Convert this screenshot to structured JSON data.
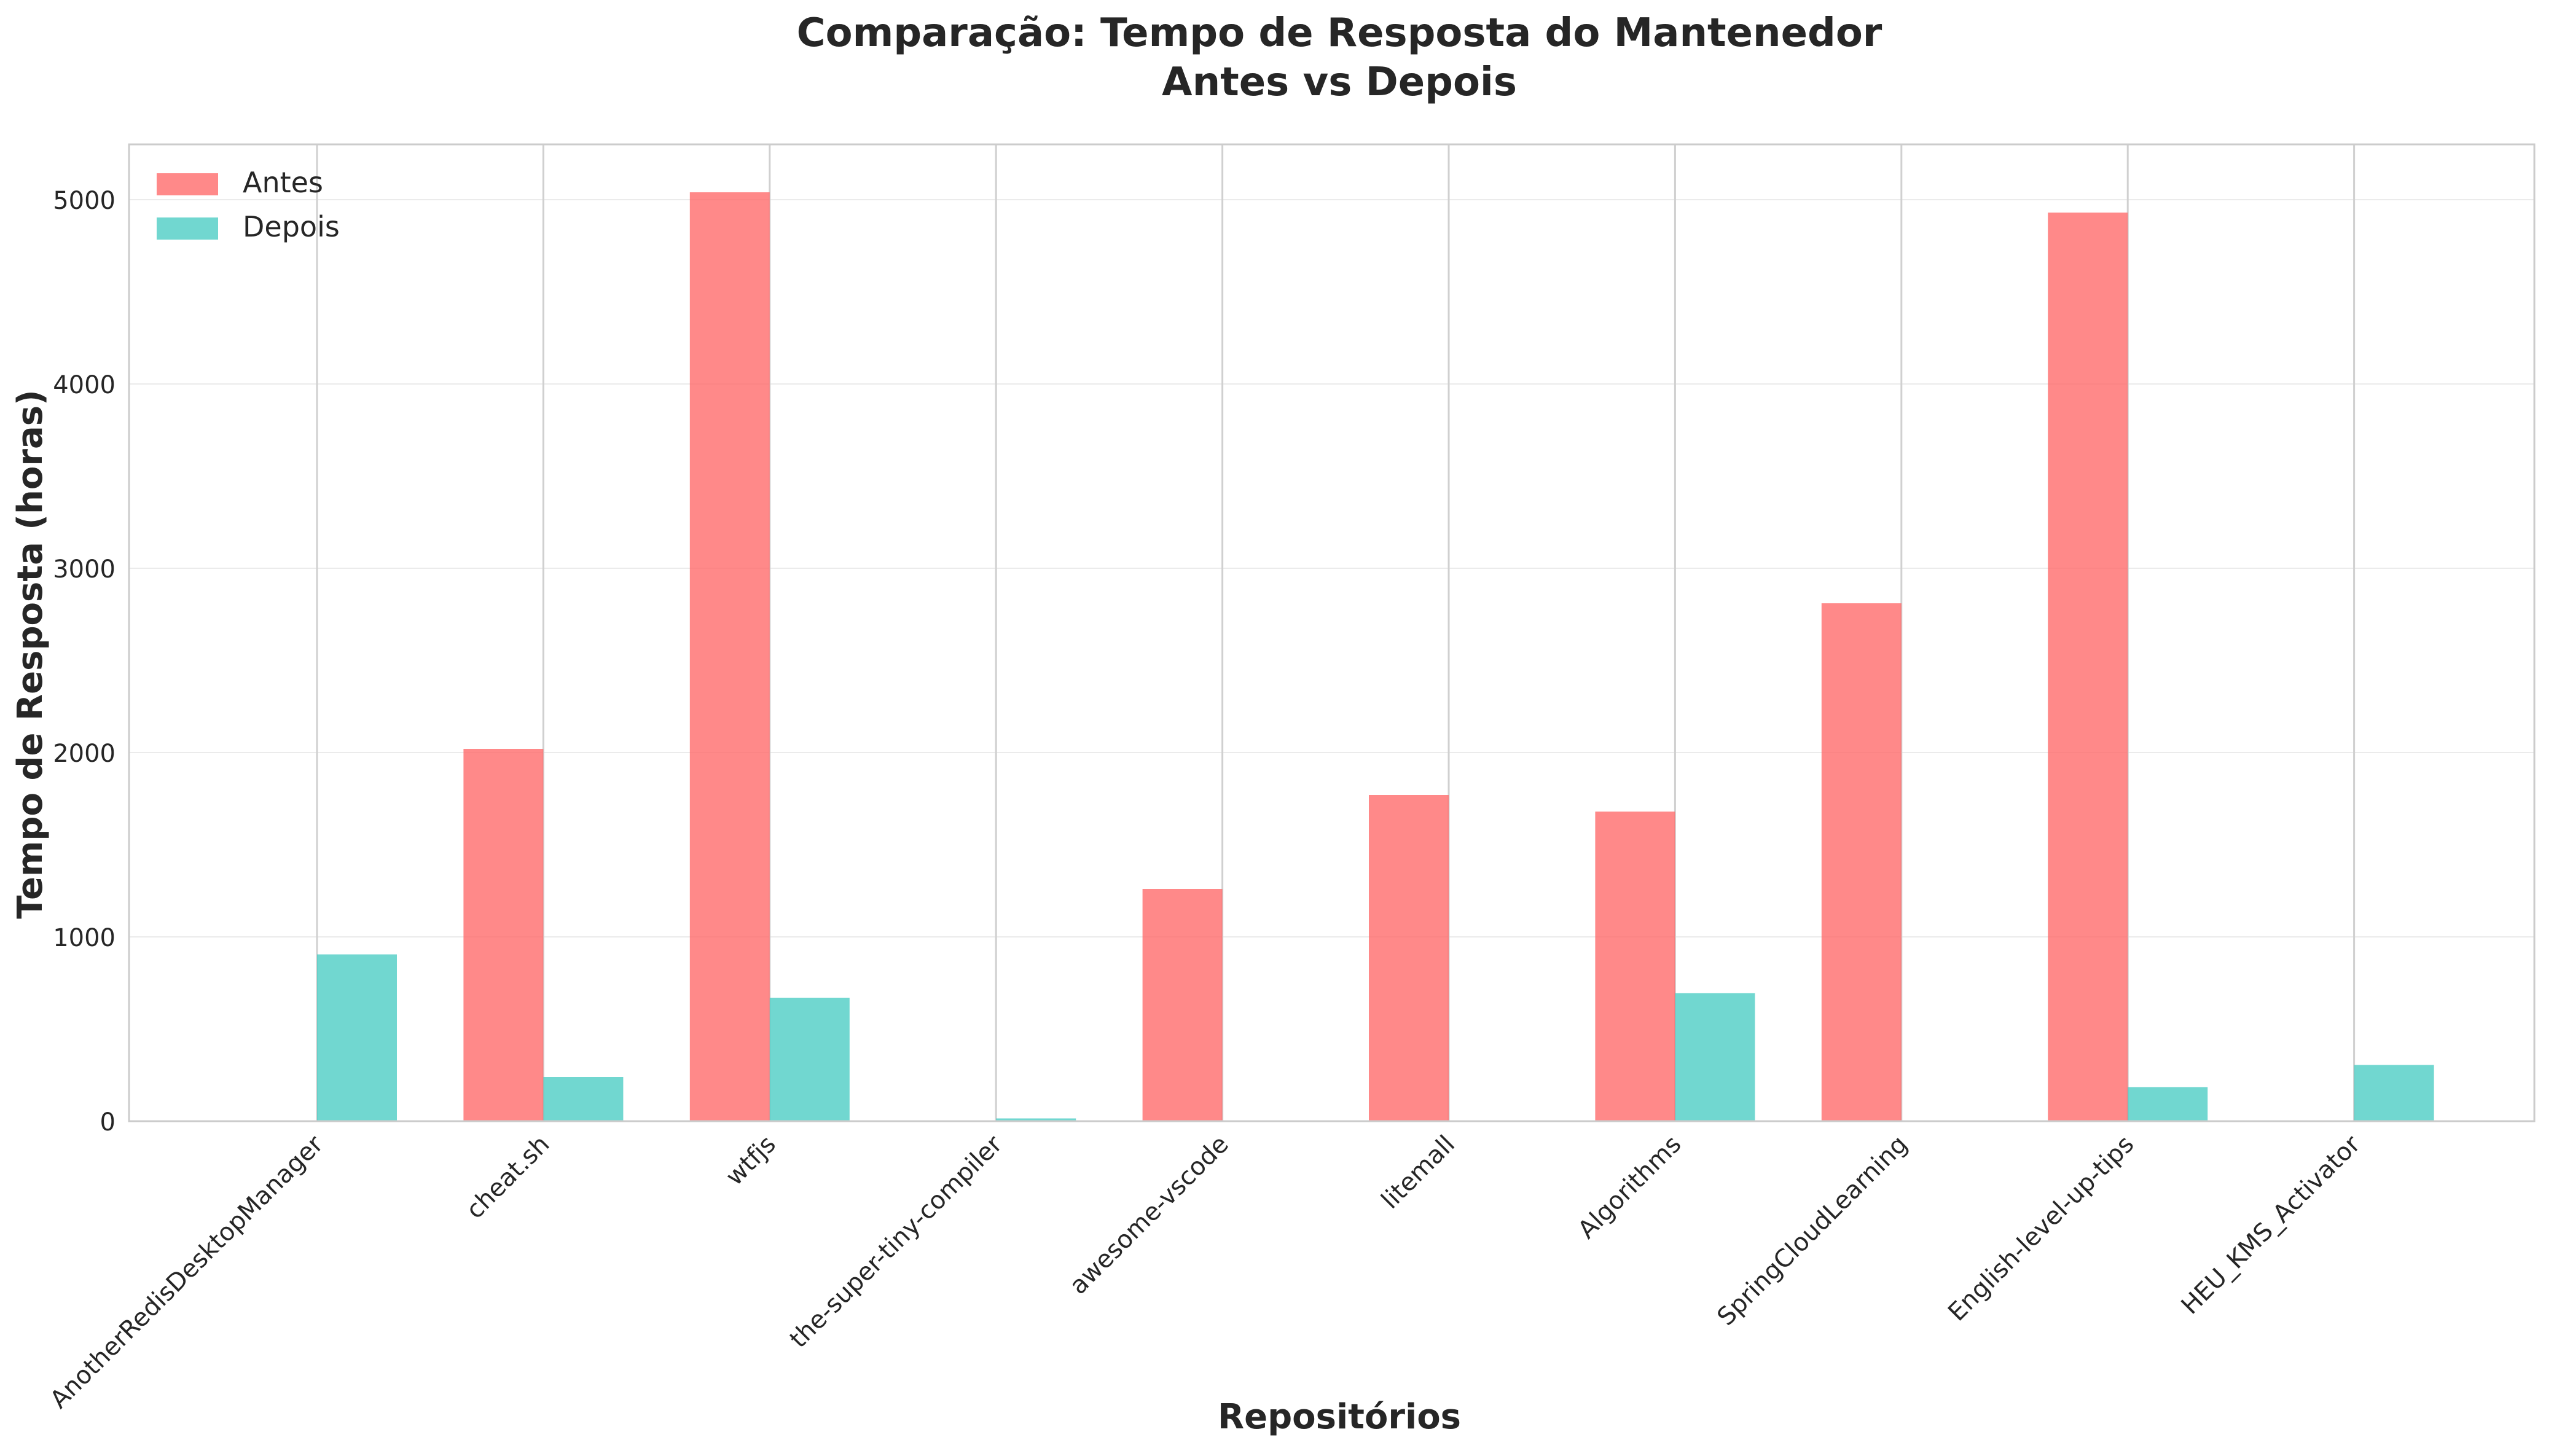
{
  "chart_data": {
    "type": "bar",
    "title": "Comparação: Tempo de Resposta do Mantenedor",
    "subtitle": "Antes vs Depois",
    "xlabel": "Repositórios",
    "ylabel": "Tempo de Resposta (horas)",
    "ylim": [
      0,
      5300
    ],
    "yticks": [
      0,
      1000,
      2000,
      3000,
      4000,
      5000
    ],
    "grid": true,
    "legend_position": "top-left",
    "categories": [
      "AnotherRedisDesktopManager",
      "cheat.sh",
      "wtfjs",
      "the-super-tiny-compiler",
      "awesome-vscode",
      "litemall",
      "Algorithms",
      "SpringCloudLearning",
      "English-level-up-tips",
      "HEU_KMS_Activator"
    ],
    "series": [
      {
        "name": "Antes",
        "color": "#ff6b6b",
        "values": [
          0,
          2020,
          5040,
          0,
          1260,
          1770,
          1680,
          2810,
          4930,
          0
        ]
      },
      {
        "name": "Depois",
        "color": "#4ecdc4",
        "values": [
          905,
          240,
          670,
          15,
          0,
          0,
          695,
          0,
          185,
          305
        ]
      }
    ]
  }
}
